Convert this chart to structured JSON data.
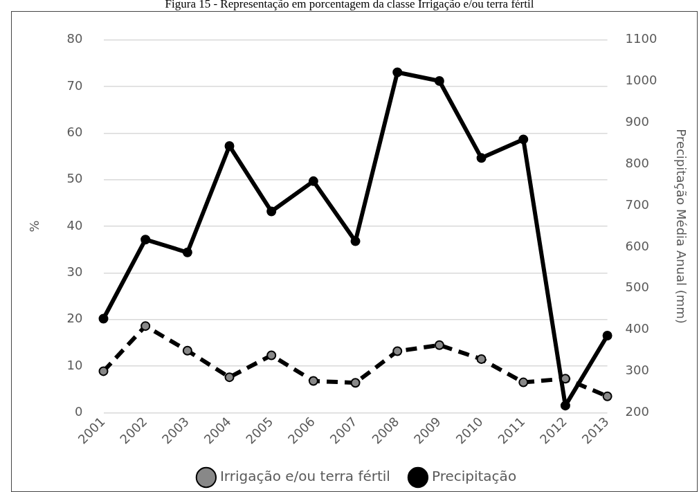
{
  "chart_data": {
    "type": "line",
    "title": "Figura 15 - Representação em porcentagem da classe Irrigação e/ou terra fértil",
    "categories": [
      "2001",
      "2002",
      "2003",
      "2004",
      "2005",
      "2006",
      "2007",
      "2008",
      "2009",
      "2010",
      "2011",
      "2012",
      "2013"
    ],
    "series": [
      {
        "name": "Irrigação e/ou terra fértil",
        "color": "#000000",
        "line_style": "dashed",
        "values": [
          8.9,
          18.6,
          13.3,
          7.6,
          12.3,
          6.8,
          6.4,
          13.2,
          14.5,
          11.5,
          6.5,
          7.3,
          3.5
        ]
      },
      {
        "name": "Precipitação",
        "color": "#000000",
        "line_style": "solid",
        "axis": "y2",
        "values": [
          427,
          618,
          587,
          844,
          686,
          759,
          614,
          1022,
          1001,
          815,
          860,
          217,
          386
        ]
      }
    ],
    "ylabel": "%",
    "y2label": "Precipitação Média Anual (mm)",
    "ylim": [
      0,
      80
    ],
    "yticks": [
      0,
      10,
      20,
      30,
      40,
      50,
      60,
      70,
      80
    ],
    "y2lim": [
      200,
      1100
    ],
    "y2ticks": [
      200,
      300,
      400,
      500,
      600,
      700,
      800,
      900,
      1000,
      1100
    ],
    "grid": "y",
    "legend": "bottom",
    "marker": "circle"
  }
}
